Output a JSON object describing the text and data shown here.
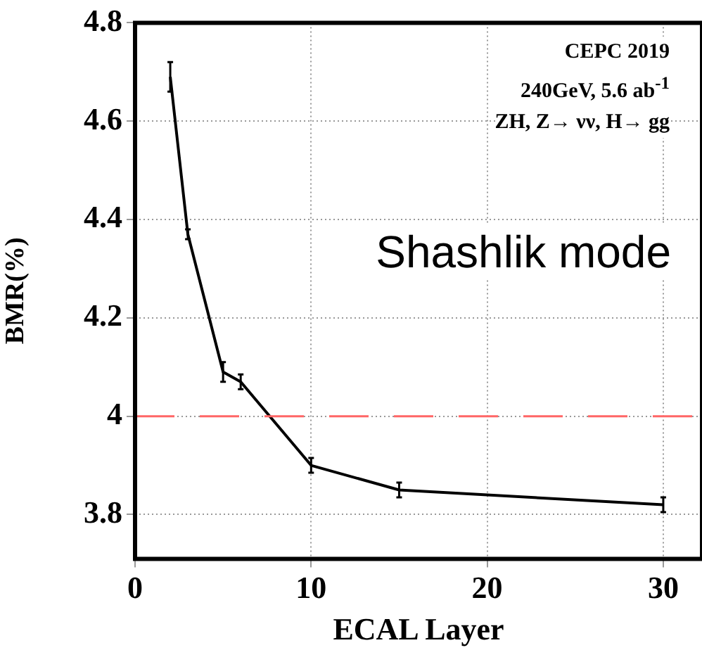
{
  "chart_data": {
    "type": "line",
    "xlabel": "ECAL Layer",
    "ylabel": "BMR(%)",
    "x": [
      2,
      3,
      5,
      6,
      10,
      15,
      30
    ],
    "series": [
      {
        "color": "#000000",
        "values": [
          4.69,
          4.37,
          4.09,
          4.07,
          3.9,
          3.85,
          3.82
        ],
        "errors": [
          0.03,
          0.01,
          0.02,
          0.015,
          0.015,
          0.015,
          0.015
        ]
      }
    ],
    "xlim": [
      0,
      32.2
    ],
    "xticks": [
      0,
      10,
      20,
      30
    ],
    "ylim": [
      3.71,
      4.8
    ],
    "yticks": [
      3.8,
      4,
      4.2,
      4.4,
      4.6,
      4.8
    ],
    "grid": true,
    "legend": false,
    "marker": "none",
    "line_style": "solid",
    "ref_lines": [
      {
        "axis": "y",
        "value": 4,
        "color": "#ff6666",
        "line_style": "dashed"
      }
    ],
    "annotations": [
      "CEPC 2019",
      "240GeV, 5.6 ab$^{-1}$",
      "ZH, Z→  νν, H→ gg",
      "Shashlik mode"
    ]
  }
}
